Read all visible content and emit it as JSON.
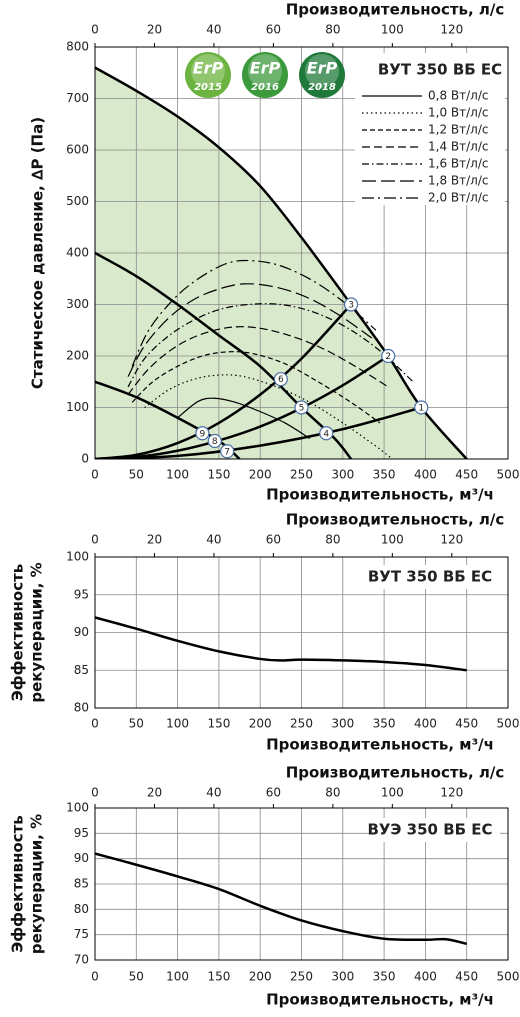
{
  "chart_data": [
    {
      "type": "line",
      "title": "ВУТ 350 ВБ ЕС",
      "xlabel": "Производительность, м³/ч",
      "x2label": "Производительность, л/с",
      "ylabel": "Статическое давление, ∆Р (Па)",
      "xlim": [
        0,
        500
      ],
      "xticks": [
        0,
        50,
        100,
        150,
        200,
        250,
        300,
        350,
        400,
        450,
        500
      ],
      "x2lim": [
        0,
        138.9
      ],
      "x2ticks": [
        0,
        20,
        40,
        60,
        80,
        100,
        120
      ],
      "ylim": [
        0,
        800
      ],
      "yticks": [
        0,
        100,
        200,
        300,
        400,
        500,
        600,
        700,
        800
      ],
      "grid": true,
      "badges": [
        {
          "text": "ErP",
          "year": "2015",
          "color": "#6cb33f"
        },
        {
          "text": "ErP",
          "year": "2016",
          "color": "#3c9a3c"
        },
        {
          "text": "ErP",
          "year": "2018",
          "color": "#1f7a3a"
        }
      ],
      "series": [
        {
          "color": "#000000",
          "area_color": "#d9e9cc",
          "width": 2.5,
          "dash": "solid",
          "x": [
            0,
            50,
            100,
            150,
            200,
            250,
            310,
            355,
            395,
            450
          ],
          "values": [
            760,
            715,
            665,
            605,
            530,
            430,
            300,
            200,
            100,
            0
          ]
        },
        {
          "color": "#000000",
          "width": 2.5,
          "dash": "solid",
          "x": [
            0,
            50,
            100,
            150,
            200,
            250,
            290,
            310
          ],
          "values": [
            400,
            355,
            300,
            240,
            180,
            100,
            40,
            0
          ]
        },
        {
          "color": "#000000",
          "width": 2.5,
          "dash": "solid",
          "x": [
            0,
            50,
            100,
            150,
            175
          ],
          "values": [
            150,
            120,
            80,
            35,
            0
          ]
        },
        {
          "color": "#000000",
          "width": 2.5,
          "dash": "solid",
          "x": [
            0,
            50,
            100,
            150,
            200,
            250,
            310
          ],
          "values": [
            0,
            8,
            31,
            70,
            125,
            195,
            300
          ]
        },
        {
          "color": "#000000",
          "width": 2.5,
          "dash": "solid",
          "x": [
            0,
            50,
            100,
            150,
            200,
            250,
            300,
            355
          ],
          "values": [
            0,
            4,
            16,
            36,
            63,
            99,
            143,
            200
          ]
        },
        {
          "color": "#000000",
          "width": 2.5,
          "dash": "solid",
          "x": [
            0,
            100,
            200,
            300,
            395
          ],
          "values": [
            0,
            6,
            26,
            58,
            100
          ]
        },
        {
          "name": "0,8 Вт/л/с",
          "color": "#000000",
          "width": 1.2,
          "dash": "solid",
          "x": [
            100,
            125,
            145,
            170,
            200,
            230,
            260
          ],
          "values": [
            80,
            112,
            118,
            110,
            92,
            70,
            40
          ]
        },
        {
          "name": "1,0 Вт/л/с",
          "color": "#000000",
          "width": 1.2,
          "dash": "dot",
          "x": [
            60,
            90,
            120,
            150,
            180,
            220,
            260,
            300,
            340,
            360
          ],
          "values": [
            100,
            135,
            155,
            163,
            160,
            140,
            110,
            70,
            25,
            0
          ]
        },
        {
          "name": "1,2 Вт/л/с",
          "color": "#000000",
          "width": 1.2,
          "dash": "dash-short",
          "x": [
            45,
            70,
            100,
            130,
            160,
            190,
            230,
            270,
            310,
            345
          ],
          "values": [
            110,
            150,
            180,
            200,
            208,
            205,
            185,
            150,
            110,
            70
          ]
        },
        {
          "name": "1,4 Вт/л/с",
          "color": "#000000",
          "width": 1.2,
          "dash": "dash",
          "x": [
            40,
            65,
            95,
            125,
            160,
            195,
            235,
            275,
            315,
            355
          ],
          "values": [
            125,
            175,
            215,
            240,
            255,
            255,
            240,
            215,
            180,
            140
          ]
        },
        {
          "name": "1,6 Вт/л/с",
          "color": "#000000",
          "width": 1.2,
          "dash": "dash-dot",
          "x": [
            40,
            60,
            90,
            120,
            150,
            185,
            225,
            265,
            305,
            345,
            385
          ],
          "values": [
            140,
            195,
            240,
            270,
            290,
            300,
            300,
            285,
            255,
            210,
            150
          ]
        },
        {
          "name": "1,8 Вт/л/с",
          "color": "#000000",
          "width": 1.2,
          "dash": "dash-long",
          "x": [
            40,
            60,
            90,
            120,
            150,
            180,
            215,
            255,
            295,
            335
          ],
          "values": [
            160,
            220,
            275,
            310,
            330,
            340,
            335,
            315,
            280,
            235
          ]
        },
        {
          "name": "2,0 Вт/л/с",
          "color": "#000000",
          "width": 1.2,
          "dash": "dash-dot-long",
          "x": [
            45,
            65,
            95,
            125,
            160,
            190,
            225,
            265,
            305,
            340
          ],
          "values": [
            180,
            250,
            310,
            350,
            380,
            385,
            375,
            345,
            300,
            250
          ]
        }
      ],
      "points": [
        {
          "label": "1",
          "x": 395,
          "y": 100
        },
        {
          "label": "2",
          "x": 355,
          "y": 200
        },
        {
          "label": "3",
          "x": 310,
          "y": 300
        },
        {
          "label": "4",
          "x": 280,
          "y": 50
        },
        {
          "label": "5",
          "x": 250,
          "y": 100
        },
        {
          "label": "6",
          "x": 225,
          "y": 155
        },
        {
          "label": "7",
          "x": 160,
          "y": 15
        },
        {
          "label": "8",
          "x": 145,
          "y": 35
        },
        {
          "label": "9",
          "x": 130,
          "y": 50
        }
      ]
    },
    {
      "type": "line",
      "title": "ВУТ 350 ВБ ЕС",
      "xlabel": "Производительность, м³/ч",
      "x2label": "Производительность, л/с",
      "ylabel": [
        "Эффективность",
        "рекуперации, %"
      ],
      "xlim": [
        0,
        500
      ],
      "xticks": [
        0,
        50,
        100,
        150,
        200,
        250,
        300,
        350,
        400,
        450,
        500
      ],
      "x2lim": [
        0,
        138.9
      ],
      "x2ticks": [
        0,
        20,
        40,
        60,
        80,
        100,
        120
      ],
      "ylim": [
        80,
        100
      ],
      "yticks": [
        80,
        85,
        90,
        95,
        100
      ],
      "grid": true,
      "series": [
        {
          "color": "#000000",
          "width": 2.5,
          "dash": "solid",
          "x": [
            0,
            50,
            100,
            150,
            200,
            225,
            250,
            300,
            350,
            400,
            450
          ],
          "values": [
            92,
            90.5,
            88.9,
            87.5,
            86.5,
            86.3,
            86.4,
            86.3,
            86.1,
            85.7,
            85
          ]
        }
      ]
    },
    {
      "type": "line",
      "title": "ВУЭ 350 ВБ ЕС",
      "xlabel": "Производительность, м³/ч",
      "x2label": "Производительность, л/с",
      "ylabel": [
        "Эффективность",
        "рекуперации, %"
      ],
      "xlim": [
        0,
        500
      ],
      "xticks": [
        0,
        50,
        100,
        150,
        200,
        250,
        300,
        350,
        400,
        450,
        500
      ],
      "x2lim": [
        0,
        138.9
      ],
      "x2ticks": [
        0,
        20,
        40,
        60,
        80,
        100,
        120
      ],
      "ylim": [
        70,
        100
      ],
      "yticks": [
        70,
        75,
        80,
        85,
        90,
        95,
        100
      ],
      "grid": true,
      "series": [
        {
          "color": "#000000",
          "width": 2.5,
          "dash": "solid",
          "x": [
            0,
            50,
            100,
            150,
            200,
            250,
            300,
            350,
            400,
            425,
            450
          ],
          "values": [
            91,
            88.8,
            86.5,
            84,
            80.7,
            77.8,
            75.7,
            74.2,
            74,
            74.1,
            73.2
          ]
        }
      ]
    }
  ]
}
